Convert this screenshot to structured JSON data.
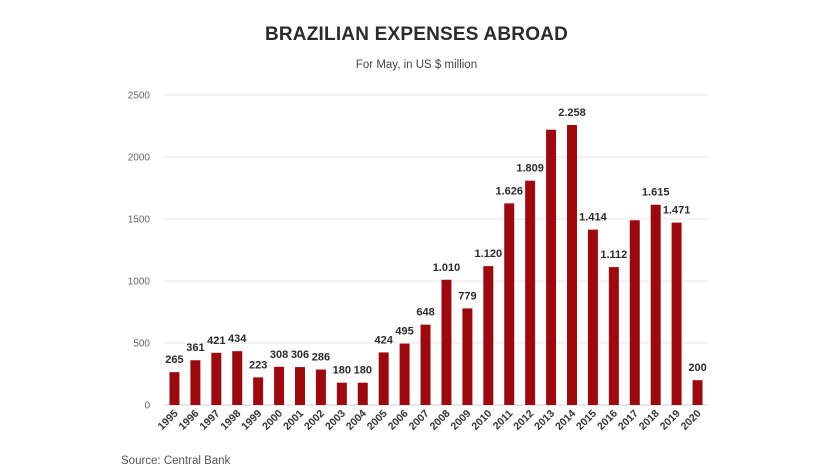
{
  "chart_data": {
    "type": "bar",
    "title": "BRAZILIAN EXPENSES ABROAD",
    "subtitle": "For May, in US $ million",
    "source": "Source: Central Bank",
    "xlabel": "",
    "ylabel": "",
    "ylim": [
      0,
      2500
    ],
    "yticks": [
      0,
      500,
      1000,
      1500,
      2000,
      2500
    ],
    "grid": true,
    "bar_color": "#9b0a0e",
    "grid_color": "#e4e4e4",
    "categories": [
      "1995",
      "1996",
      "1997",
      "1998",
      "1999",
      "2000",
      "2001",
      "2002",
      "2003",
      "2004",
      "2005",
      "2006",
      "2007",
      "2008",
      "2009",
      "2010",
      "2011",
      "2012",
      "2013",
      "2014",
      "2015",
      "2016",
      "2017",
      "2018",
      "2019",
      "2020"
    ],
    "values": [
      265,
      361,
      421,
      434,
      223,
      308,
      306,
      286,
      180,
      180,
      424,
      495,
      648,
      1010,
      779,
      1120,
      1626,
      1809,
      2220,
      2258,
      1414,
      1112,
      1490,
      1615,
      1471,
      200
    ],
    "data_labels": [
      "265",
      "361",
      "421",
      "434",
      "223",
      "308",
      "306",
      "286",
      "180",
      "180",
      "424",
      "495",
      "648",
      "1.010",
      "779",
      "1.120",
      "1.626",
      "1.809",
      "",
      "2.258",
      "1.414",
      "1.112",
      "",
      "1.615",
      "1.471",
      "200"
    ]
  }
}
